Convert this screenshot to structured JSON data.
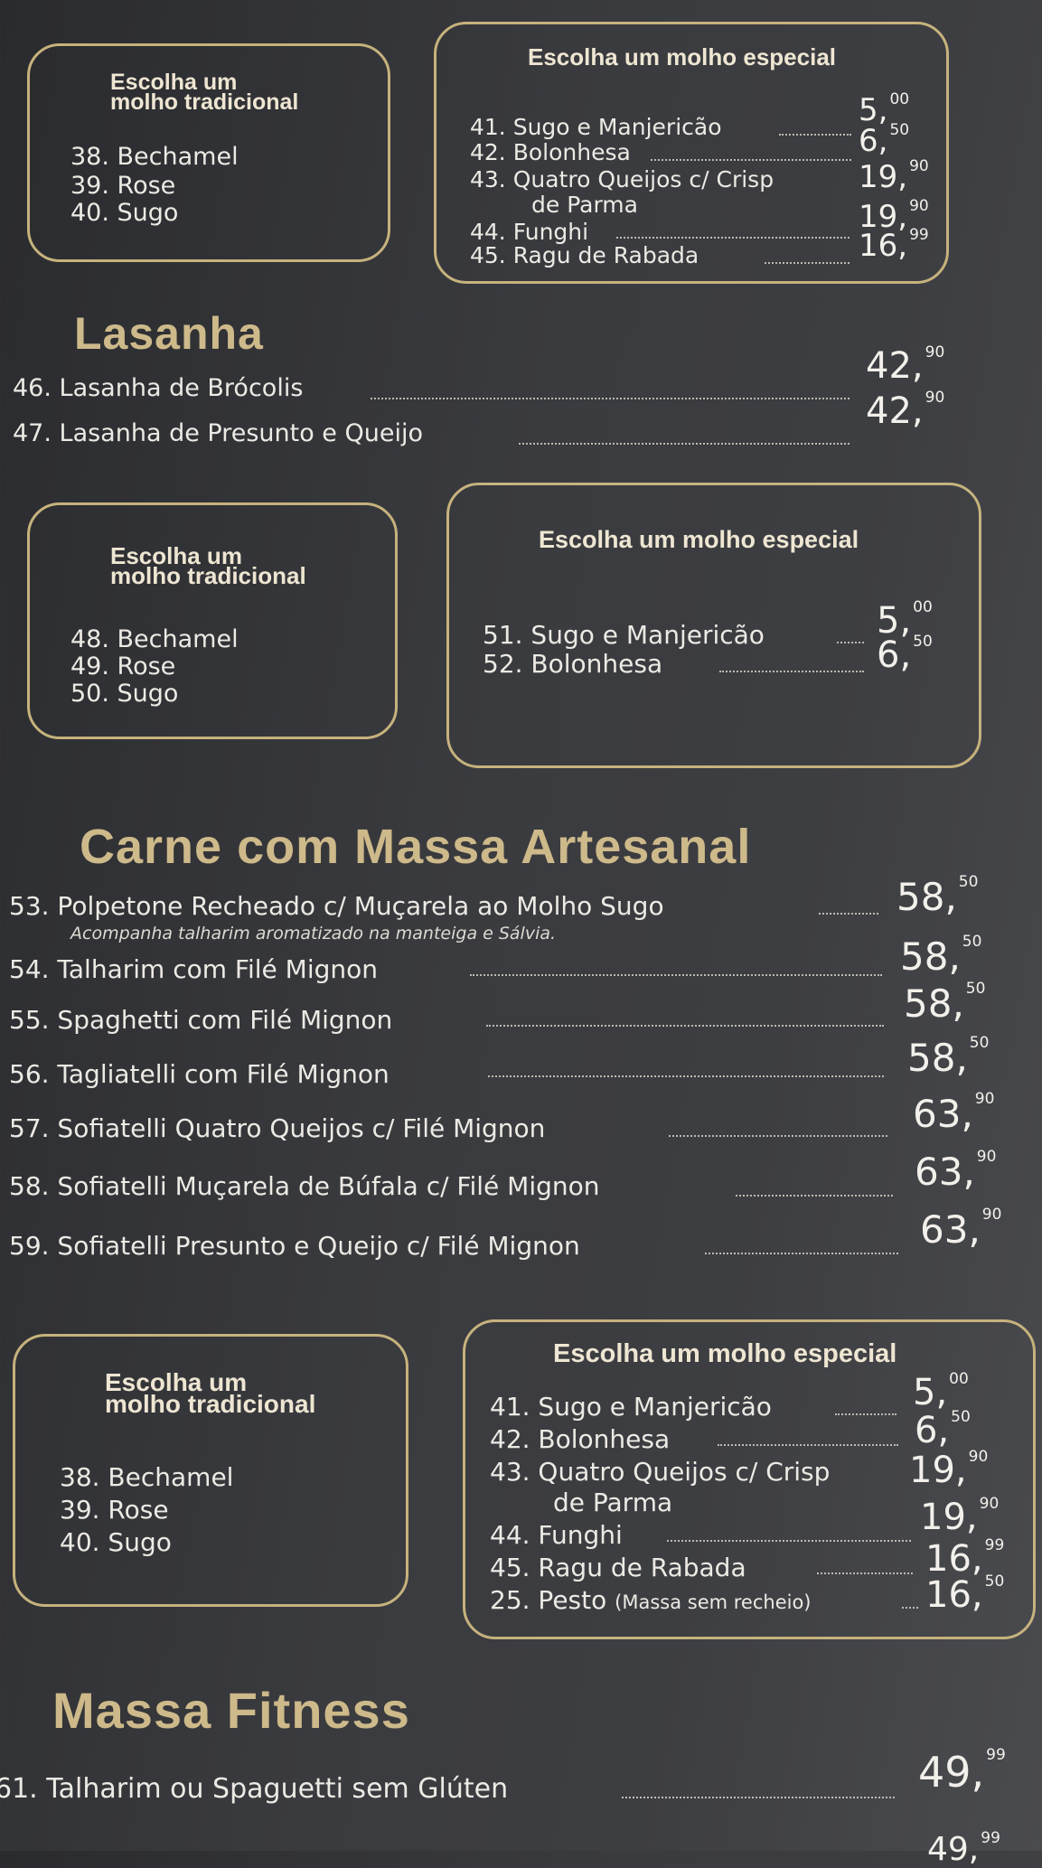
{
  "section1": {
    "traditional": {
      "title": [
        "Escolha um",
        "molho tradicional"
      ],
      "items": [
        "38. Bechamel",
        "39. Rose",
        "40. Sugo"
      ]
    },
    "special": {
      "title": "Escolha um molho especial",
      "items": [
        {
          "label": "41. Sugo e Manjericão",
          "price": "5,",
          "cents": "00"
        },
        {
          "label": "42. Bolonhesa",
          "price": "6,",
          "cents": "50"
        },
        {
          "label": "43. Quatro Queijos c/ Crisp",
          "price": "19,",
          "cents": "90"
        },
        {
          "label": "de Parma"
        },
        {
          "label": "44. Funghi",
          "price": "19,",
          "cents": "90"
        },
        {
          "label": "45. Ragu de Rabada",
          "price": "16,",
          "cents": "99"
        }
      ]
    }
  },
  "lasanha": {
    "heading": "Lasanha",
    "items": [
      {
        "label": "46. Lasanha de Brócolis",
        "price": "42,",
        "cents": "90"
      },
      {
        "label": "47. Lasanha de Presunto e Queijo",
        "price": "42,",
        "cents": "90"
      }
    ]
  },
  "section2": {
    "traditional": {
      "title": [
        "Escolha um",
        "molho tradicional"
      ],
      "items": [
        "48. Bechamel",
        "49. Rose",
        "50. Sugo"
      ]
    },
    "special": {
      "title": "Escolha um molho especial",
      "items": [
        {
          "label": "51. Sugo e Manjericão",
          "price": "5,",
          "cents": "00"
        },
        {
          "label": "52. Bolonhesa",
          "price": "6,",
          "cents": "50"
        }
      ]
    }
  },
  "carne": {
    "heading": "Carne com Massa Artesanal",
    "note": "Acompanha talharim aromatizado na manteiga e Sálvia.",
    "items": [
      {
        "label": "53. Polpetone Recheado c/ Muçarela ao Molho Sugo",
        "price": "58,",
        "cents": "50"
      },
      {
        "label": "54. Talharim com Filé Mignon",
        "price": "58,",
        "cents": "50"
      },
      {
        "label": "55. Spaghetti com Filé Mignon",
        "price": "58,",
        "cents": "50"
      },
      {
        "label": "56. Tagliatelli com Filé Mignon",
        "price": "58,",
        "cents": "50"
      },
      {
        "label": "57. Sofiatelli Quatro Queijos c/ Filé Mignon",
        "price": "63,",
        "cents": "90"
      },
      {
        "label": "58. Sofiatelli Muçarela de Búfala c/ Filé Mignon",
        "price": "63,",
        "cents": "90"
      },
      {
        "label": "59. Sofiatelli Presunto e Queijo c/ Filé Mignon",
        "price": "63,",
        "cents": "90"
      }
    ]
  },
  "section3": {
    "traditional": {
      "title": [
        "Escolha um",
        "molho tradicional"
      ],
      "items": [
        "38. Bechamel",
        "39. Rose",
        "40. Sugo"
      ]
    },
    "special": {
      "title": "Escolha um molho especial",
      "items": [
        {
          "label": "41. Sugo e Manjericão",
          "price": "5,",
          "cents": "00"
        },
        {
          "label": "42. Bolonhesa",
          "price": "6,",
          "cents": "50"
        },
        {
          "label": "43. Quatro Queijos c/ Crisp",
          "price": "19,",
          "cents": "90"
        },
        {
          "label": "de Parma"
        },
        {
          "label": "44. Funghi",
          "price": "19,",
          "cents": "90"
        },
        {
          "label": "45. Ragu de Rabada",
          "price": "16,",
          "cents": "99"
        },
        {
          "label": "25. Pesto",
          "sub": "(Massa sem recheio)",
          "price": "16,",
          "cents": "50"
        }
      ]
    }
  },
  "fitness": {
    "heading": "Massa Fitness",
    "items": [
      {
        "label": "61. Talharim ou Spaguetti sem Glúten",
        "price": "49,",
        "cents": "99"
      },
      {
        "label": "",
        "price": "49,",
        "cents": "99"
      }
    ]
  },
  "colors": {
    "accent": "#c6b27d",
    "background": "#3a3b3f",
    "text": "#eceae4"
  }
}
